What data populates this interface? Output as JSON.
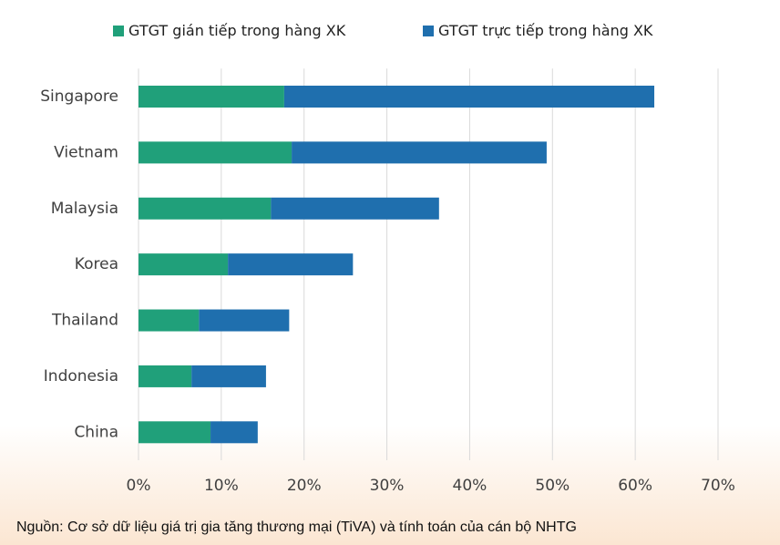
{
  "chart_data": {
    "type": "bar",
    "orientation": "horizontal",
    "stacked": true,
    "categories": [
      "Singapore",
      "Vietnam",
      "Malaysia",
      "Korea",
      "Thailand",
      "Indonesia",
      "China"
    ],
    "series": [
      {
        "name": "GTGT gián tiếp trong hàng XK",
        "color": "#20a07a",
        "values": [
          17.6,
          18.5,
          16.0,
          10.8,
          7.3,
          6.4,
          8.7
        ]
      },
      {
        "name": "GTGT trực tiếp trong hàng XK",
        "color": "#1f6fae",
        "values": [
          44.7,
          30.8,
          20.3,
          15.1,
          10.9,
          9.0,
          5.7
        ]
      }
    ],
    "xlim": [
      0,
      70
    ],
    "xticks": [
      {
        "value": 0,
        "label": "0%"
      },
      {
        "value": 10,
        "label": "10%"
      },
      {
        "value": 20,
        "label": "20%"
      },
      {
        "value": 30,
        "label": "30%"
      },
      {
        "value": 40,
        "label": "40%"
      },
      {
        "value": 50,
        "label": "50%"
      },
      {
        "value": 60,
        "label": "60%"
      },
      {
        "value": 70,
        "label": "70%"
      }
    ],
    "grid": true,
    "legend": "top",
    "source": "Nguồn: Cơ sở dữ liệu giá trị gia tăng thương mại (TiVA) và tính toán của cán bộ NHTG"
  }
}
